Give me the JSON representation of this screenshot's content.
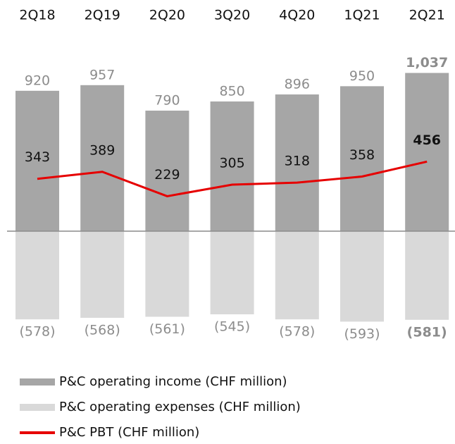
{
  "chart_data": {
    "type": "bar",
    "categories": [
      "2Q18",
      "2Q19",
      "2Q20",
      "3Q20",
      "4Q20",
      "1Q21",
      "2Q21"
    ],
    "series": [
      {
        "name": "P&C operating income (CHF million)",
        "type": "bar",
        "color": "#a6a6a6",
        "values": [
          920,
          957,
          790,
          850,
          896,
          950,
          1037
        ],
        "value_labels": [
          "920",
          "957",
          "790",
          "850",
          "896",
          "950",
          "1,037"
        ]
      },
      {
        "name": "P&C operating expenses (CHF million)",
        "type": "bar",
        "color": "#d9d9d9",
        "values": [
          -578,
          -568,
          -561,
          -545,
          -578,
          -593,
          -581
        ],
        "value_labels": [
          "(578)",
          "(568)",
          "(561)",
          "(545)",
          "(578)",
          "(593)",
          "(581)"
        ]
      },
      {
        "name": "P&C PBT (CHF million)",
        "type": "line",
        "color": "#e60000",
        "values": [
          343,
          389,
          229,
          305,
          318,
          358,
          456
        ]
      }
    ]
  }
}
